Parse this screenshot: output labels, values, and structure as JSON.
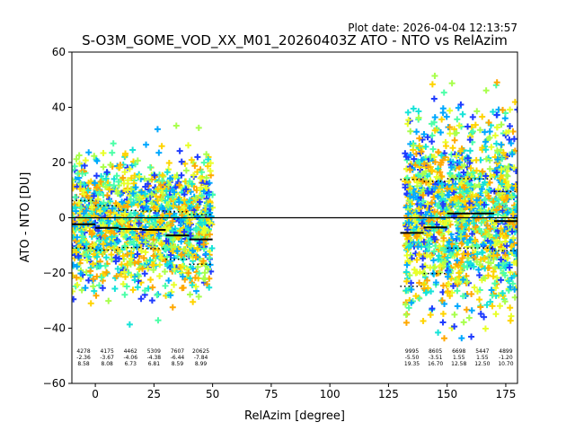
{
  "plot_date": "Plot date: 2026-04-04 12:13:57",
  "chart_data": {
    "type": "scatter",
    "title": "S-O3M_GOME_VOD_XX_M01_20260403Z ATO - NTO vs RelAzim",
    "xlabel": "RelAzim [degree]",
    "ylabel": "ATO - NTO [DU]",
    "xlim": [
      -10,
      180
    ],
    "ylim": [
      -60,
      60
    ],
    "xticks": [
      0,
      25,
      50,
      75,
      100,
      125,
      150,
      175
    ],
    "yticks": [
      -60,
      -40,
      -20,
      0,
      20,
      40,
      60
    ],
    "grid": false,
    "legend": "none",
    "zero_line": 0,
    "scatter_palette": [
      "#1f3cff",
      "#00a8ff",
      "#16e3d8",
      "#4dffa8",
      "#a8ff4d",
      "#e8ff2a",
      "#ffd400",
      "#ffa800"
    ],
    "clusters": [
      {
        "x": [
          -10,
          50
        ],
        "y_center": -2,
        "y_spread": 30
      },
      {
        "x": [
          132,
          180
        ],
        "y_center": 2,
        "y_spread": 45
      }
    ],
    "bins": [
      {
        "x0": -10,
        "x1": 0,
        "count": "4278",
        "mean": "-2.36",
        "std": "8.58",
        "mean_val": -2.36,
        "std_val": 8.58
      },
      {
        "x0": 0,
        "x1": 10,
        "count": "4175",
        "mean": "-3.67",
        "std": "8.08",
        "mean_val": -3.67,
        "std_val": 8.08
      },
      {
        "x0": 10,
        "x1": 20,
        "count": "4462",
        "mean": "-4.06",
        "std": "6.73",
        "mean_val": -4.06,
        "std_val": 6.73
      },
      {
        "x0": 20,
        "x1": 30,
        "count": "5309",
        "mean": "-4.38",
        "std": "6.81",
        "mean_val": -4.38,
        "std_val": 6.81
      },
      {
        "x0": 30,
        "x1": 40,
        "count": "7607",
        "mean": "-6.44",
        "std": "8.59",
        "mean_val": -6.44,
        "std_val": 8.59
      },
      {
        "x0": 40,
        "x1": 50,
        "count": "20625",
        "mean": "-7.84",
        "std": "8.99",
        "mean_val": -7.84,
        "std_val": 8.99
      },
      {
        "x0": 130,
        "x1": 140,
        "count": "9995",
        "mean": "-5.50",
        "std": "19.35",
        "mean_val": -5.5,
        "std_val": 19.35
      },
      {
        "x0": 140,
        "x1": 150,
        "count": "8605",
        "mean": "-3.51",
        "std": "16.70",
        "mean_val": -3.51,
        "std_val": 16.7
      },
      {
        "x0": 150,
        "x1": 160,
        "count": "6698",
        "mean": "1.55",
        "std": "12.58",
        "mean_val": 1.55,
        "std_val": 12.58
      },
      {
        "x0": 160,
        "x1": 170,
        "count": "5447",
        "mean": "1.55",
        "std": "12.50",
        "mean_val": 1.55,
        "std_val": 12.5
      },
      {
        "x0": 170,
        "x1": 180,
        "count": "4899",
        "mean": "-1.20",
        "std": "10.70",
        "mean_val": -1.2,
        "std_val": 10.7
      }
    ]
  }
}
